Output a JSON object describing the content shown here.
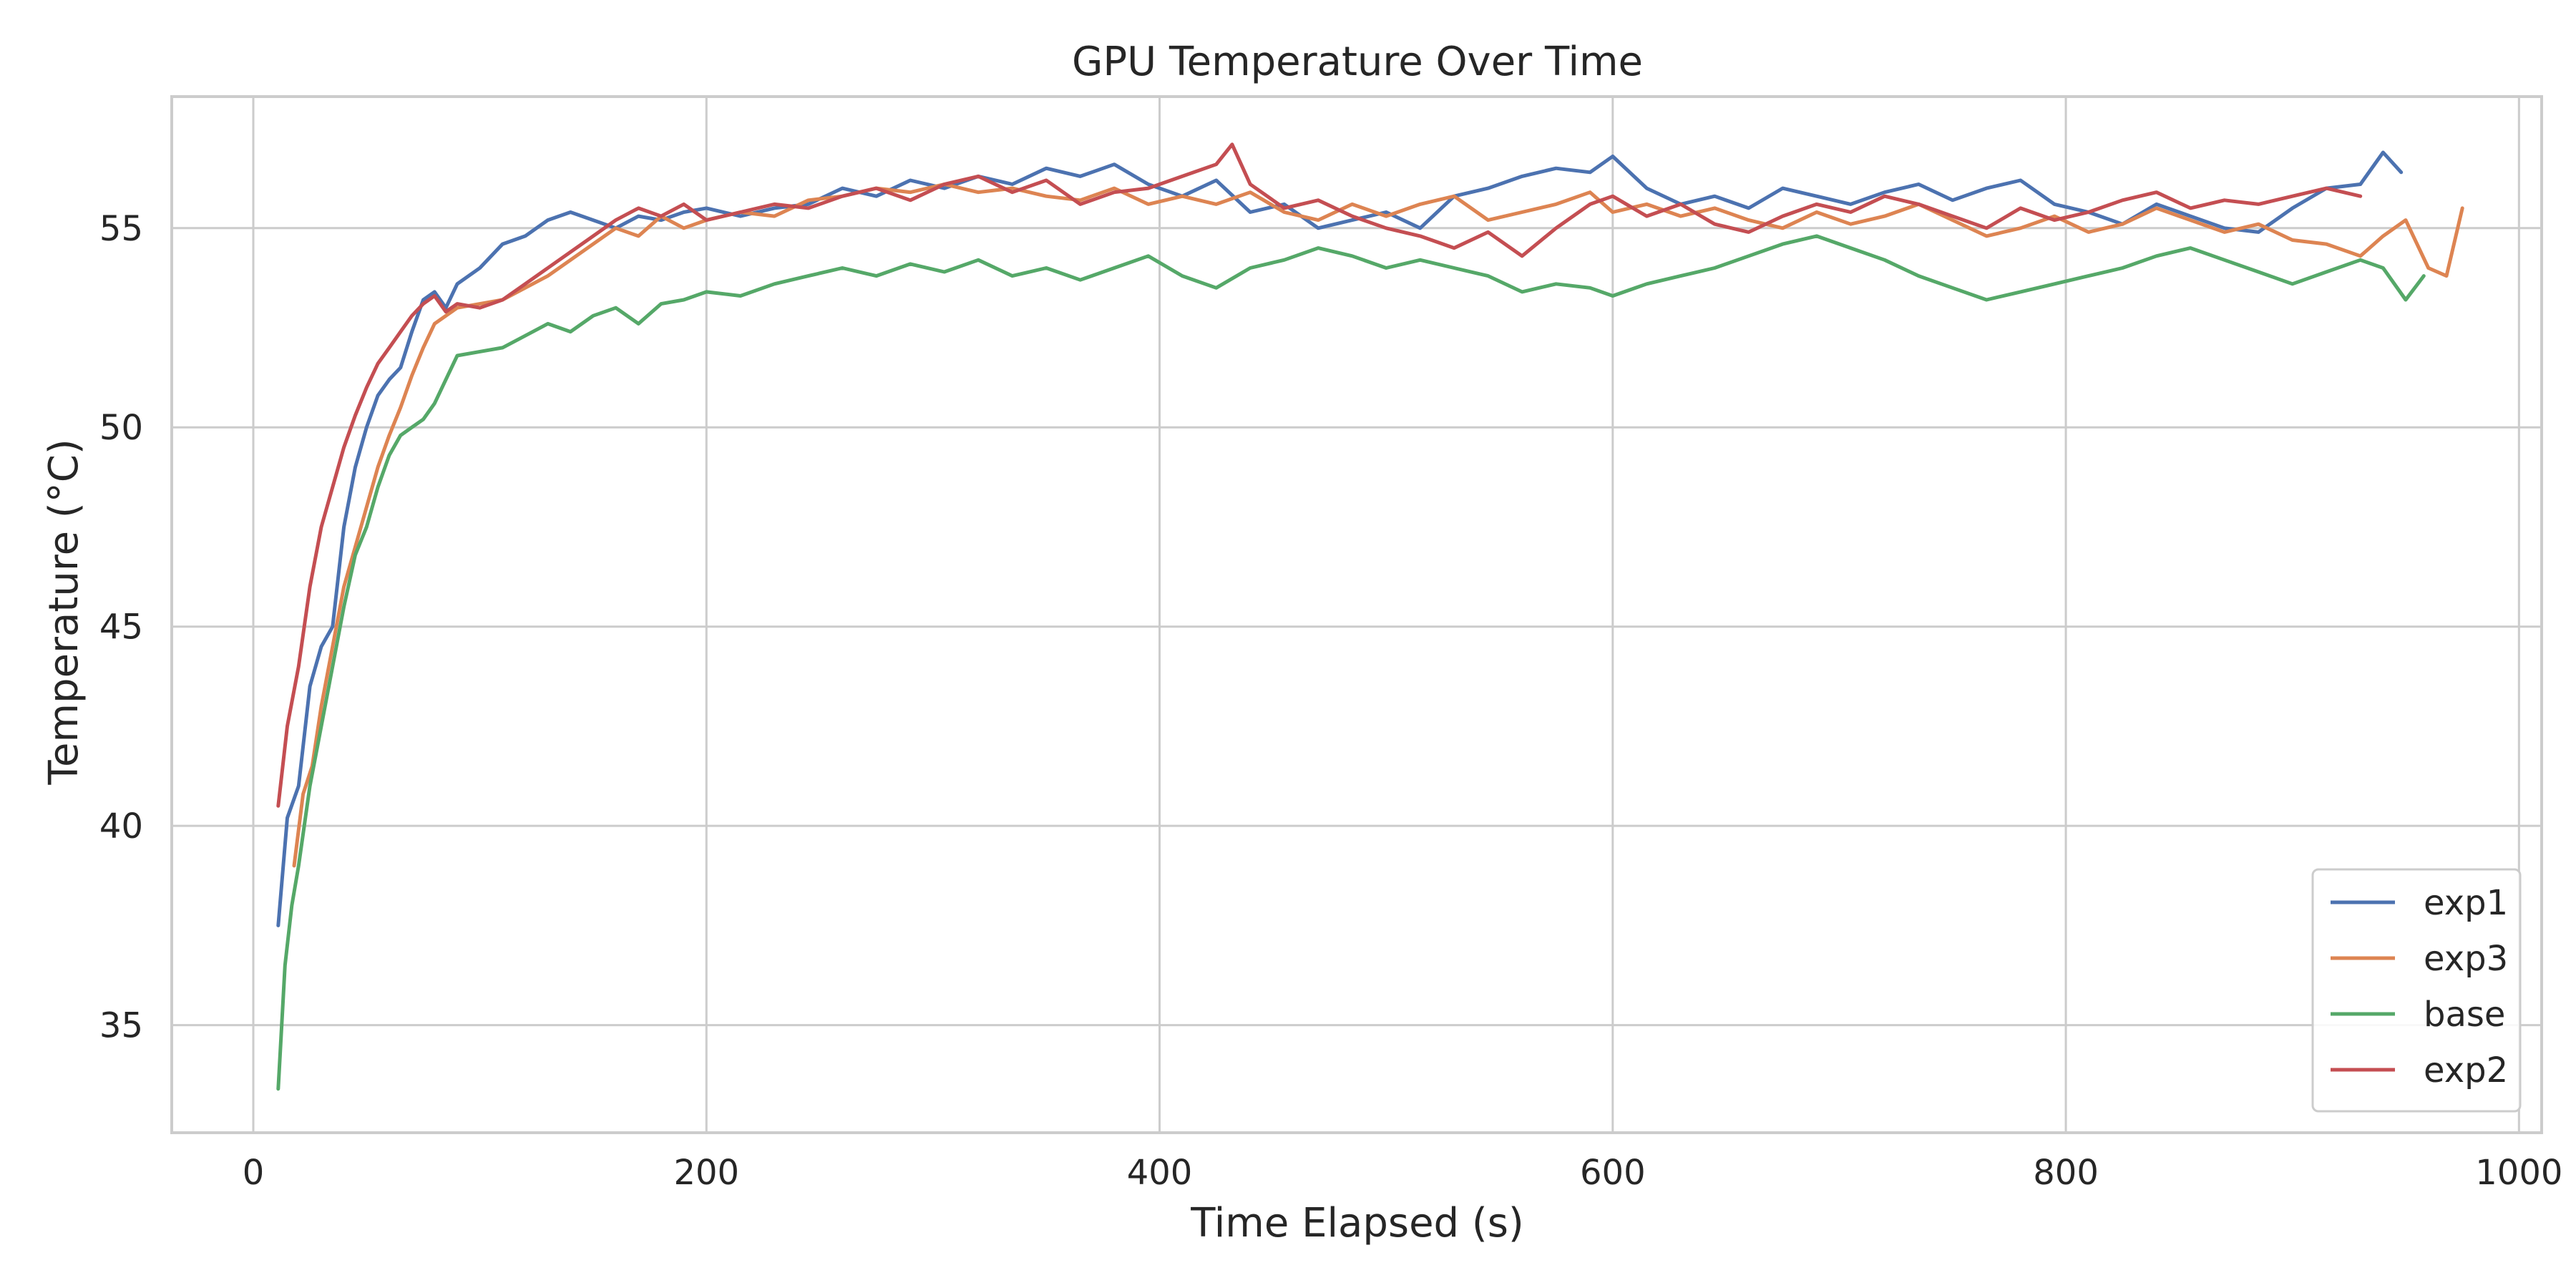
{
  "chart_data": {
    "type": "line",
    "title": "GPU Temperature Over Time",
    "xlabel": "Time Elapsed (s)",
    "ylabel": "Temperature (°C)",
    "xlim": [
      -36,
      1010
    ],
    "ylim": [
      32.3,
      58.3
    ],
    "xticks": [
      0,
      200,
      400,
      600,
      800,
      1000
    ],
    "yticks": [
      35,
      40,
      45,
      50,
      55
    ],
    "grid": true,
    "legend_position": "lower right",
    "series": [
      {
        "name": "exp1",
        "color": "#4c72b0",
        "x": [
          11,
          15,
          20,
          25,
          30,
          35,
          40,
          45,
          50,
          55,
          60,
          65,
          70,
          75,
          80,
          85,
          90,
          100,
          110,
          120,
          130,
          140,
          150,
          160,
          170,
          180,
          190,
          200,
          215,
          230,
          245,
          260,
          275,
          290,
          305,
          320,
          335,
          350,
          365,
          380,
          395,
          410,
          425,
          440,
          455,
          470,
          485,
          500,
          515,
          530,
          545,
          560,
          575,
          590,
          600,
          615,
          630,
          645,
          660,
          675,
          690,
          705,
          720,
          735,
          750,
          765,
          780,
          795,
          810,
          825,
          840,
          855,
          870,
          885,
          900,
          915,
          930,
          940,
          948
        ],
        "y": [
          37.5,
          40.2,
          41.0,
          43.5,
          44.5,
          45.0,
          47.5,
          49.0,
          50.0,
          50.8,
          51.2,
          51.5,
          52.4,
          53.2,
          53.4,
          53.0,
          53.6,
          54.0,
          54.6,
          54.8,
          55.2,
          55.4,
          55.2,
          55.0,
          55.3,
          55.2,
          55.4,
          55.5,
          55.3,
          55.5,
          55.6,
          56.0,
          55.8,
          56.2,
          56.0,
          56.3,
          56.1,
          56.5,
          56.3,
          56.6,
          56.1,
          55.8,
          56.2,
          55.4,
          55.6,
          55.0,
          55.2,
          55.4,
          55.0,
          55.8,
          56.0,
          56.3,
          56.5,
          56.4,
          56.8,
          56.0,
          55.6,
          55.8,
          55.5,
          56.0,
          55.8,
          55.6,
          55.9,
          56.1,
          55.7,
          56.0,
          56.2,
          55.6,
          55.4,
          55.1,
          55.6,
          55.3,
          55.0,
          54.9,
          55.5,
          56.0,
          56.1,
          56.9,
          56.4
        ]
      },
      {
        "name": "exp3",
        "color": "#dd8452",
        "x": [
          18,
          22,
          26,
          30,
          35,
          40,
          45,
          50,
          55,
          60,
          65,
          70,
          75,
          80,
          85,
          90,
          100,
          110,
          120,
          130,
          140,
          150,
          160,
          170,
          180,
          190,
          200,
          215,
          230,
          245,
          260,
          275,
          290,
          305,
          320,
          335,
          350,
          365,
          380,
          395,
          410,
          425,
          440,
          455,
          470,
          485,
          500,
          515,
          530,
          545,
          560,
          575,
          590,
          600,
          615,
          630,
          645,
          660,
          675,
          690,
          705,
          720,
          735,
          750,
          765,
          780,
          795,
          810,
          825,
          840,
          855,
          870,
          885,
          900,
          915,
          930,
          940,
          950,
          960,
          968,
          975
        ],
        "y": [
          39.0,
          40.8,
          41.5,
          43.0,
          44.5,
          46.0,
          47.0,
          48.0,
          49.0,
          49.8,
          50.5,
          51.3,
          52.0,
          52.6,
          52.8,
          53.0,
          53.1,
          53.2,
          53.5,
          53.8,
          54.2,
          54.6,
          55.0,
          54.8,
          55.3,
          55.0,
          55.2,
          55.4,
          55.3,
          55.7,
          55.8,
          56.0,
          55.9,
          56.1,
          55.9,
          56.0,
          55.8,
          55.7,
          56.0,
          55.6,
          55.8,
          55.6,
          55.9,
          55.4,
          55.2,
          55.6,
          55.3,
          55.6,
          55.8,
          55.2,
          55.4,
          55.6,
          55.9,
          55.4,
          55.6,
          55.3,
          55.5,
          55.2,
          55.0,
          55.4,
          55.1,
          55.3,
          55.6,
          55.2,
          54.8,
          55.0,
          55.3,
          54.9,
          55.1,
          55.5,
          55.2,
          54.9,
          55.1,
          54.7,
          54.6,
          54.3,
          54.8,
          55.2,
          54.0,
          53.8,
          55.5
        ]
      },
      {
        "name": "base",
        "color": "#55a868",
        "x": [
          11,
          14,
          17,
          20,
          25,
          30,
          35,
          40,
          45,
          50,
          55,
          60,
          65,
          70,
          75,
          80,
          85,
          90,
          100,
          110,
          120,
          130,
          140,
          150,
          160,
          170,
          180,
          190,
          200,
          215,
          230,
          245,
          260,
          275,
          290,
          305,
          320,
          335,
          350,
          365,
          380,
          395,
          410,
          425,
          440,
          455,
          470,
          485,
          500,
          515,
          530,
          545,
          560,
          575,
          590,
          600,
          615,
          630,
          645,
          660,
          675,
          690,
          705,
          720,
          735,
          750,
          765,
          780,
          795,
          810,
          825,
          840,
          855,
          870,
          885,
          900,
          915,
          930,
          940,
          950,
          958
        ],
        "y": [
          33.4,
          36.5,
          38.0,
          39.0,
          41.0,
          42.5,
          44.0,
          45.5,
          46.8,
          47.5,
          48.5,
          49.3,
          49.8,
          50.0,
          50.2,
          50.6,
          51.2,
          51.8,
          51.9,
          52.0,
          52.3,
          52.6,
          52.4,
          52.8,
          53.0,
          52.6,
          53.1,
          53.2,
          53.4,
          53.3,
          53.6,
          53.8,
          54.0,
          53.8,
          54.1,
          53.9,
          54.2,
          53.8,
          54.0,
          53.7,
          54.0,
          54.3,
          53.8,
          53.5,
          54.0,
          54.2,
          54.5,
          54.3,
          54.0,
          54.2,
          54.0,
          53.8,
          53.4,
          53.6,
          53.5,
          53.3,
          53.6,
          53.8,
          54.0,
          54.3,
          54.6,
          54.8,
          54.5,
          54.2,
          53.8,
          53.5,
          53.2,
          53.4,
          53.6,
          53.8,
          54.0,
          54.3,
          54.5,
          54.2,
          53.9,
          53.6,
          53.9,
          54.2,
          54.0,
          53.2,
          53.8
        ]
      },
      {
        "name": "exp2",
        "color": "#c44e52",
        "x": [
          11,
          15,
          20,
          25,
          30,
          35,
          40,
          45,
          50,
          55,
          60,
          65,
          70,
          75,
          80,
          85,
          90,
          100,
          110,
          120,
          130,
          140,
          150,
          160,
          170,
          180,
          190,
          200,
          215,
          230,
          245,
          260,
          275,
          290,
          305,
          320,
          335,
          350,
          365,
          380,
          395,
          410,
          425,
          432,
          440,
          455,
          470,
          485,
          500,
          515,
          530,
          545,
          560,
          575,
          590,
          600,
          615,
          630,
          645,
          660,
          675,
          690,
          705,
          720,
          735,
          750,
          765,
          780,
          795,
          810,
          825,
          840,
          855,
          870,
          885,
          900,
          915,
          930
        ],
        "y": [
          40.5,
          42.5,
          44.0,
          46.0,
          47.5,
          48.5,
          49.5,
          50.3,
          51.0,
          51.6,
          52.0,
          52.4,
          52.8,
          53.1,
          53.3,
          52.9,
          53.1,
          53.0,
          53.2,
          53.6,
          54.0,
          54.4,
          54.8,
          55.2,
          55.5,
          55.3,
          55.6,
          55.2,
          55.4,
          55.6,
          55.5,
          55.8,
          56.0,
          55.7,
          56.1,
          56.3,
          55.9,
          56.2,
          55.6,
          55.9,
          56.0,
          56.3,
          56.6,
          57.1,
          56.1,
          55.5,
          55.7,
          55.3,
          55.0,
          54.8,
          54.5,
          54.9,
          54.3,
          55.0,
          55.6,
          55.8,
          55.3,
          55.6,
          55.1,
          54.9,
          55.3,
          55.6,
          55.4,
          55.8,
          55.6,
          55.3,
          55.0,
          55.5,
          55.2,
          55.4,
          55.7,
          55.9,
          55.5,
          55.7,
          55.6,
          55.8,
          56.0,
          55.8
        ]
      }
    ]
  }
}
